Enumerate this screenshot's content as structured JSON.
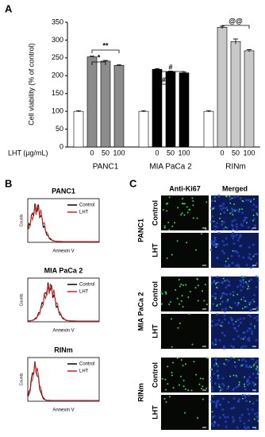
{
  "panel_labels": [
    "A",
    "B",
    "C"
  ],
  "chart_data": {
    "type": "bar",
    "ylabel": "Cell viability (% of control)",
    "xlabel": "LHT (µg/mL)",
    "groups": [
      "PANC1",
      "MIA PaCa 2",
      "RINm"
    ],
    "categories": [
      null,
      "0",
      "50",
      "100",
      null,
      "0",
      "50",
      "100",
      null,
      "0",
      "50",
      "100"
    ],
    "values": [
      100,
      253,
      241,
      229,
      100,
      218,
      211,
      208,
      100,
      336,
      296,
      270
    ],
    "errors": [
      2,
      2,
      2,
      2,
      2,
      2,
      2,
      3,
      2,
      3,
      7,
      3
    ],
    "colors": [
      "#ffffff",
      "#8c8c8c",
      "#8c8c8c",
      "#8c8c8c",
      "#ffffff",
      "#000000",
      "#000000",
      "#000000",
      "#ffffff",
      "#c8c8c8",
      "#c8c8c8",
      "#c8c8c8"
    ],
    "ylim": [
      0,
      350
    ],
    "yticks": [
      0,
      50,
      100,
      150,
      200,
      250,
      300,
      350
    ],
    "annotations": [
      "**",
      "*",
      "#",
      "#",
      "@@"
    ]
  },
  "flow": {
    "panels": [
      "PANC1",
      "MIA PaCa 2",
      "RINm"
    ],
    "legend": [
      "Control",
      "LHT"
    ],
    "ylabel": "Counts",
    "xlabel": "Annexin V"
  },
  "images": {
    "columns": [
      "Anti-Ki67",
      "Merged"
    ],
    "groups": [
      "PANC1",
      "MIA PaCa 2",
      "RINm"
    ],
    "rows": [
      "Control",
      "LHT"
    ]
  }
}
